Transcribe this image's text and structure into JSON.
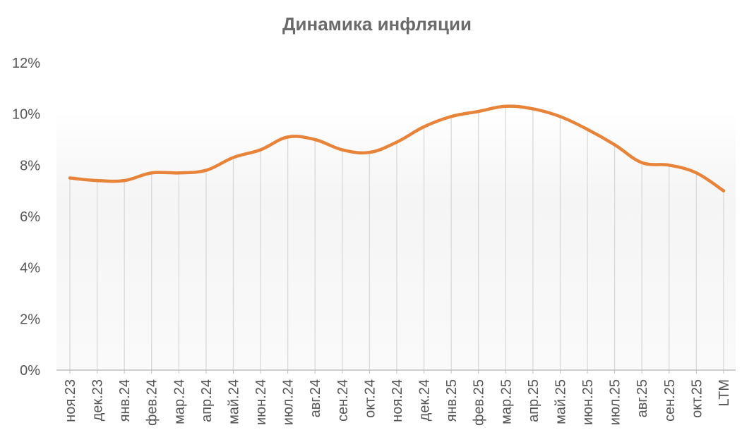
{
  "chart_data": {
    "type": "line",
    "title": "Динамика инфляции",
    "xlabel": "",
    "ylabel": "",
    "categories": [
      "ноя.23",
      "дек.23",
      "янв.24",
      "фев.24",
      "мар.24",
      "апр.24",
      "май.24",
      "июн.24",
      "июл.24",
      "авг.24",
      "сен.24",
      "окт.24",
      "ноя.24",
      "дек.24",
      "янв.25",
      "фев.25",
      "мар.25",
      "апр.25",
      "май.25",
      "июн.25",
      "июл.25",
      "авг.25",
      "сен.25",
      "окт.25",
      "LTM"
    ],
    "series": [
      {
        "values": [
          7.5,
          7.4,
          7.4,
          7.7,
          7.7,
          7.8,
          8.3,
          8.6,
          9.1,
          9.0,
          8.6,
          8.5,
          8.9,
          9.5,
          9.9,
          10.1,
          10.3,
          10.2,
          9.9,
          9.4,
          8.8,
          8.1,
          8.0,
          7.7,
          7.0
        ],
        "color": "#e8833a"
      }
    ],
    "ylim": [
      0,
      12
    ],
    "yticks": [
      "0%",
      "2%",
      "4%",
      "6%",
      "8%",
      "10%",
      "12%"
    ],
    "grid": "vertical drop lines",
    "legend": "none",
    "colors": {
      "line": "#e8833a",
      "gridline": "#d9d9d9",
      "axis": "#bfbfbf",
      "title": "#6b6b6b",
      "ticks": "#555555"
    }
  }
}
